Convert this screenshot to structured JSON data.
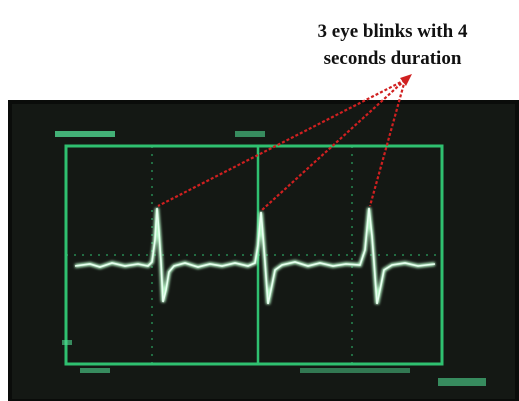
{
  "annotation": {
    "lines": [
      "3 eye blinks with 4",
      "seconds duration"
    ]
  }
}
